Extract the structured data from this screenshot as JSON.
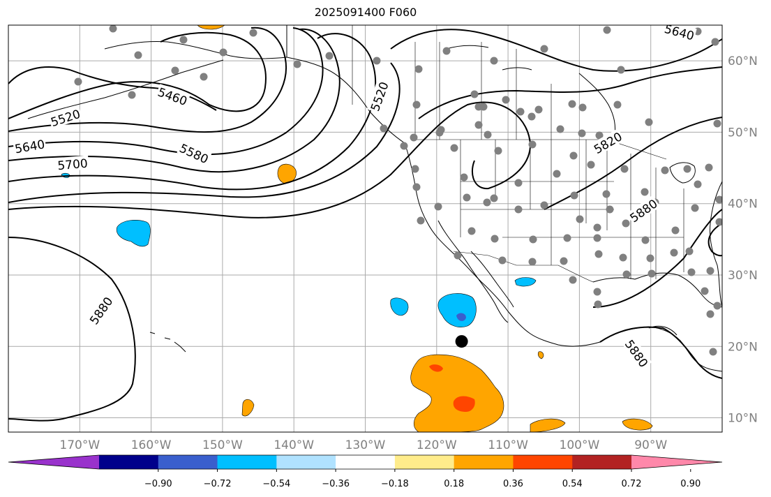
{
  "title": "2025091400 F060",
  "map": {
    "projection": "PlateCarree",
    "lon_range": [
      -180,
      -80
    ],
    "lat_range": [
      8,
      65
    ],
    "gridlines": true,
    "lon_ticks": [
      {
        "value": -170,
        "label": "170°W"
      },
      {
        "value": -160,
        "label": "160°W"
      },
      {
        "value": -150,
        "label": "150°W"
      },
      {
        "value": -140,
        "label": "140°W"
      },
      {
        "value": -130,
        "label": "130°W"
      },
      {
        "value": -120,
        "label": "120°W"
      },
      {
        "value": -110,
        "label": "110°W"
      },
      {
        "value": -100,
        "label": "100°W"
      },
      {
        "value": -90,
        "label": "90°W"
      }
    ],
    "lat_ticks": [
      {
        "value": 10,
        "label": "10°N"
      },
      {
        "value": 20,
        "label": "20°N"
      },
      {
        "value": 30,
        "label": "30°N"
      },
      {
        "value": 40,
        "label": "40°N"
      },
      {
        "value": 50,
        "label": "50°N"
      },
      {
        "value": 60,
        "label": "60°N"
      }
    ],
    "contour_labels": [
      {
        "text": "5460",
        "lon": -157,
        "lat": 55,
        "angle": 20
      },
      {
        "text": "5520",
        "lon": -172,
        "lat": 52,
        "angle": -18
      },
      {
        "text": "5640",
        "lon": -177,
        "lat": 48,
        "angle": -10
      },
      {
        "text": "5700",
        "lon": -171,
        "lat": 45.5,
        "angle": -5
      },
      {
        "text": "5580",
        "lon": -154,
        "lat": 47,
        "angle": 25
      },
      {
        "text": "5880",
        "lon": -167,
        "lat": 25,
        "angle": -55
      },
      {
        "text": "5820",
        "lon": -96,
        "lat": 48.5,
        "angle": -30
      },
      {
        "text": "5880",
        "lon": -91,
        "lat": 39,
        "angle": -35
      },
      {
        "text": "5880",
        "lon": -92,
        "lat": 19,
        "angle": 55
      },
      {
        "text": "5640",
        "lon": -86,
        "lat": 64,
        "angle": 15
      },
      {
        "text": "5520",
        "lon": -128,
        "lat": 55,
        "angle": -70
      }
    ],
    "station_marker_color": "#808080",
    "focus_point": {
      "lon": -116.5,
      "lat": 20.7,
      "color": "#000000"
    }
  },
  "colorbar": {
    "colors": [
      "#9932CC",
      "#00008B",
      "#3A5FCD",
      "#00BFFF",
      "#B0E2FF",
      "#FFFFFF",
      "#FFEC8B",
      "#FFA500",
      "#FF4500",
      "#B22222",
      "#FF88AA"
    ],
    "tick_labels": [
      "−0.90",
      "−0.72",
      "−0.54",
      "−0.36",
      "−0.18",
      "0.18",
      "0.36",
      "0.54",
      "0.72",
      "0.90"
    ]
  }
}
